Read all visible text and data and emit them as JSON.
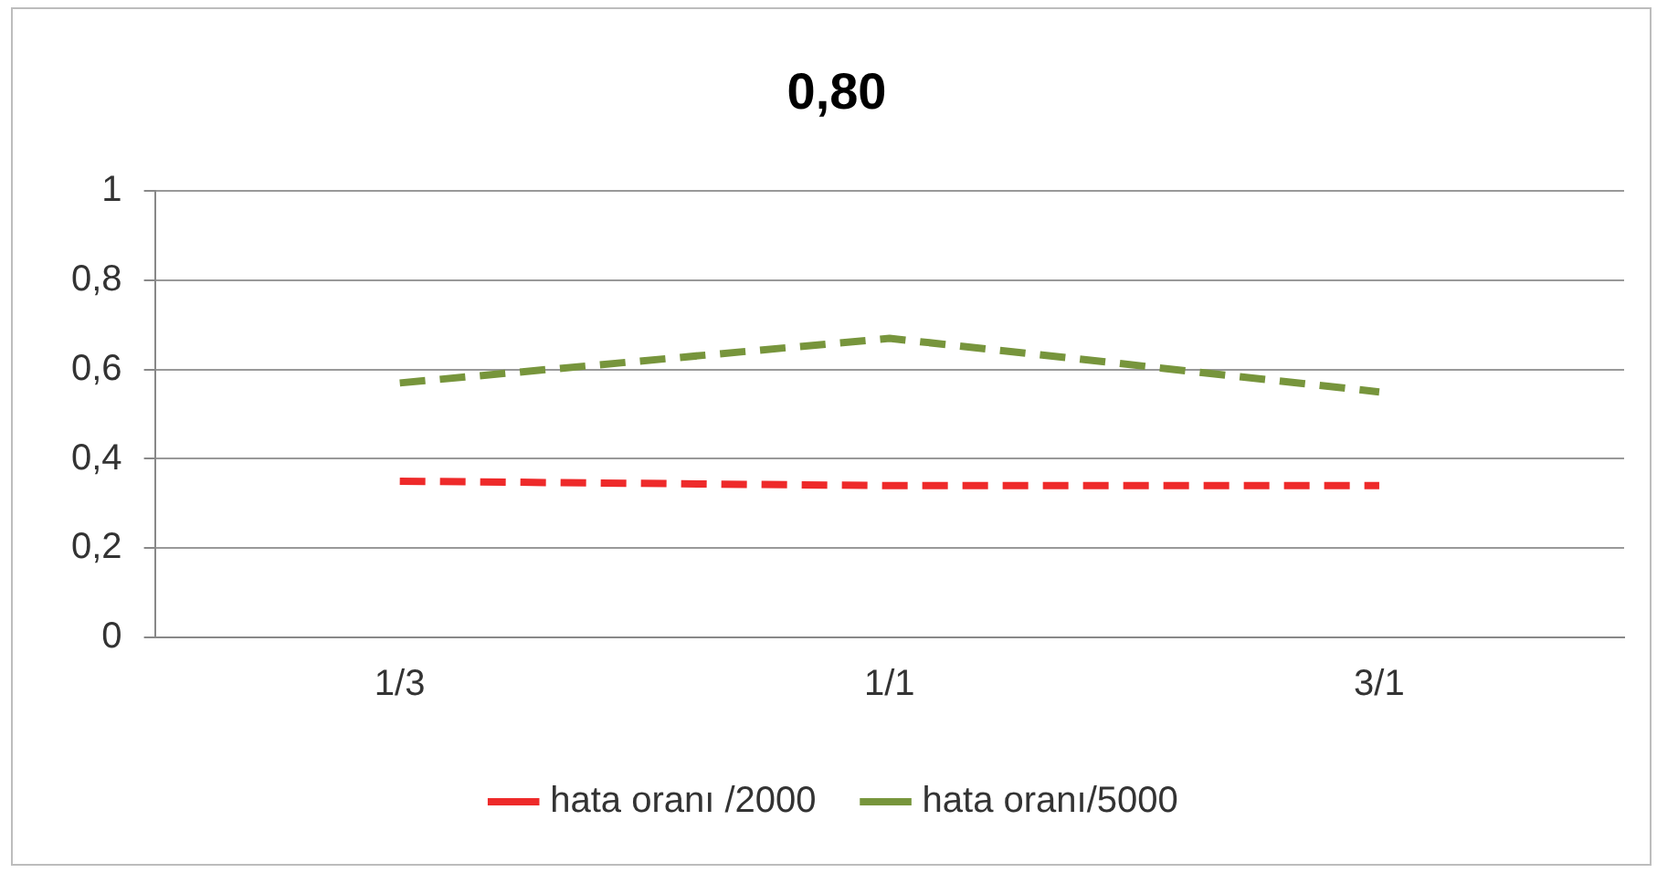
{
  "chart_data": {
    "type": "line",
    "title": "0,80",
    "categories": [
      "1/3",
      "1/1",
      "3/1"
    ],
    "series": [
      {
        "name": "hata oranı /2000",
        "color": "#ee2a2a",
        "values": [
          0.35,
          0.34,
          0.34
        ],
        "line_style": "dashed"
      },
      {
        "name": "hata oranı/5000",
        "color": "#77953c",
        "values": [
          0.57,
          0.67,
          0.55
        ],
        "line_style": "dashed"
      }
    ],
    "ylim": [
      0,
      1
    ],
    "yticks": [
      0,
      {
        "value": 0.2,
        "label": "0,2"
      },
      {
        "value": 0.4,
        "label": "0,4"
      },
      {
        "value": 0.6,
        "label": "0,6"
      },
      {
        "value": 0.8,
        "label": "0,8"
      },
      1
    ],
    "grid": "y",
    "legend": "bottom",
    "marker": "none"
  }
}
